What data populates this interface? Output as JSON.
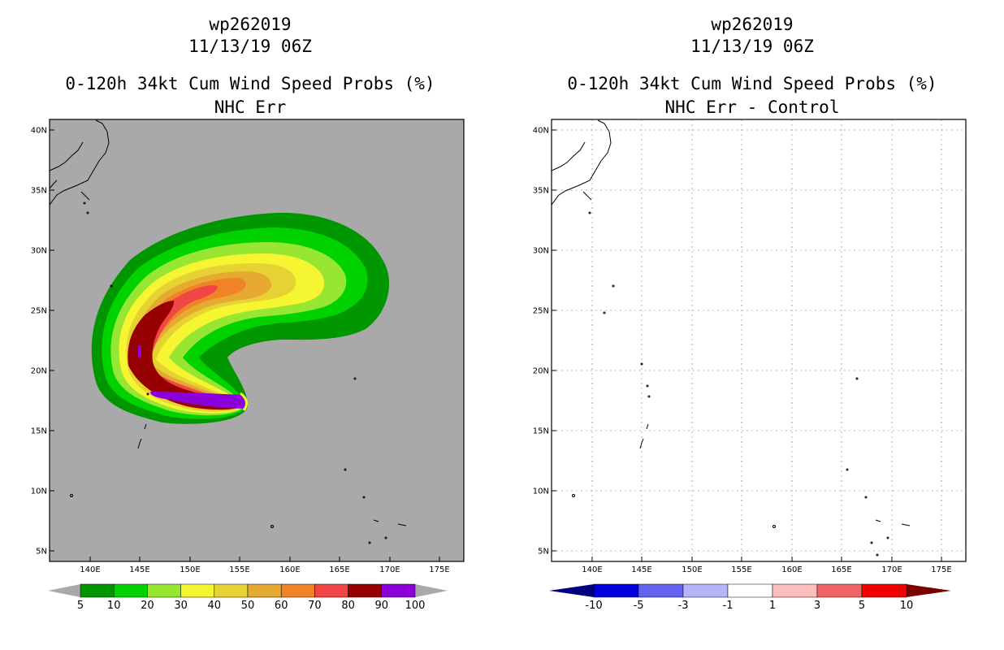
{
  "left_panel": {
    "storm_id": "wp262019",
    "datetime": "11/13/19 06Z",
    "product": "0-120h 34kt Cum Wind Speed Probs (%)",
    "subtitle": "NHC Err",
    "lat_labels": [
      "40N",
      "35N",
      "30N",
      "25N",
      "20N",
      "15N",
      "10N",
      "5N"
    ],
    "lon_labels": [
      "140E",
      "145E",
      "150E",
      "155E",
      "160E",
      "165E",
      "170E",
      "175E"
    ],
    "colorbar": {
      "labels": [
        "5",
        "10",
        "20",
        "30",
        "40",
        "50",
        "60",
        "70",
        "80",
        "90",
        "100"
      ],
      "colors": [
        "#009600",
        "#00d200",
        "#96e632",
        "#f5f532",
        "#e6d232",
        "#e6aa32",
        "#f08228",
        "#f04646",
        "#960000",
        "#8c00dc"
      ],
      "under_color": "#a9a9a9",
      "over_color": "#a9a9a9"
    },
    "background_color": "#a9a9a9"
  },
  "right_panel": {
    "storm_id": "wp262019",
    "datetime": "11/13/19 06Z",
    "product": "0-120h 34kt Cum Wind Speed Probs (%)",
    "subtitle": "NHC Err - Control",
    "lat_labels": [
      "40N",
      "35N",
      "30N",
      "25N",
      "20N",
      "15N",
      "10N",
      "5N"
    ],
    "lon_labels": [
      "140E",
      "145E",
      "150E",
      "155E",
      "160E",
      "165E",
      "170E",
      "175E"
    ],
    "colorbar": {
      "labels": [
        "-10",
        "-5",
        "-3",
        "-1",
        "1",
        "3",
        "5",
        "10"
      ],
      "colors": [
        "#0000dc",
        "#6464f0",
        "#b4b4f8",
        "#ffffff",
        "#ffbebe",
        "#f06464",
        "#f00000"
      ],
      "under_color": "#00007d",
      "over_color": "#7d0000"
    },
    "background_color": "#ffffff"
  }
}
